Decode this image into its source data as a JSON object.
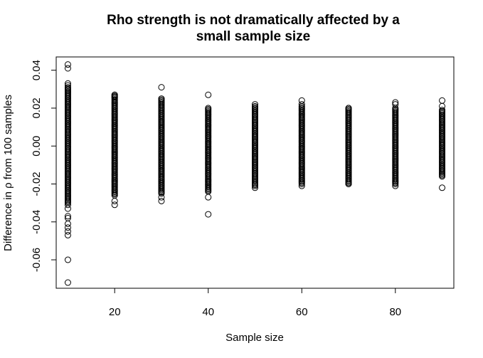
{
  "chart_data": {
    "type": "scatter",
    "title_lines": [
      "Rho strength is not dramatically affected by a",
      "small sample size"
    ],
    "xlabel": "Sample size",
    "ylabel": "Difference in ρ from 100 samples",
    "xlim": [
      7.5,
      92.5
    ],
    "ylim": [
      -0.075,
      0.047
    ],
    "x_ticks": [
      20,
      40,
      60,
      80
    ],
    "x_tick_labels": [
      "20",
      "40",
      "60",
      "80"
    ],
    "y_ticks": [
      -0.06,
      -0.04,
      -0.02,
      0.0,
      0.02,
      0.04
    ],
    "y_tick_labels": [
      "-0.06",
      "-0.04",
      "-0.02",
      "0.00",
      "0.02",
      "0.04"
    ],
    "grid": false,
    "legend": "none",
    "marker": "open-circle",
    "series": [
      {
        "x": 10,
        "dense_range": [
          -0.03,
          0.031
        ],
        "y_outliers": [
          0.043,
          0.041,
          0.033,
          0.032,
          -0.031,
          -0.033,
          -0.037,
          -0.038,
          -0.041,
          -0.043,
          -0.045,
          -0.047,
          -0.06,
          -0.072
        ]
      },
      {
        "x": 20,
        "dense_range": [
          -0.026,
          0.027
        ],
        "y_outliers": [
          0.027,
          0.026,
          -0.029,
          -0.031
        ]
      },
      {
        "x": 30,
        "dense_range": [
          -0.025,
          0.025
        ],
        "y_outliers": [
          0.031,
          -0.027,
          -0.029
        ]
      },
      {
        "x": 40,
        "dense_range": [
          -0.024,
          0.02
        ],
        "y_outliers": [
          0.027,
          -0.027,
          -0.036
        ]
      },
      {
        "x": 50,
        "dense_range": [
          -0.021,
          0.021
        ],
        "y_outliers": [
          0.022,
          -0.022
        ]
      },
      {
        "x": 60,
        "dense_range": [
          -0.02,
          0.021
        ],
        "y_outliers": [
          0.024,
          0.022,
          -0.021
        ]
      },
      {
        "x": 70,
        "dense_range": [
          -0.02,
          0.02
        ],
        "y_outliers": [
          0.02,
          -0.02
        ]
      },
      {
        "x": 80,
        "dense_range": [
          -0.02,
          0.02
        ],
        "y_outliers": [
          0.023,
          0.022,
          -0.021
        ]
      },
      {
        "x": 90,
        "dense_range": [
          -0.016,
          0.019
        ],
        "y_outliers": [
          0.024,
          0.021,
          -0.022
        ]
      }
    ]
  }
}
